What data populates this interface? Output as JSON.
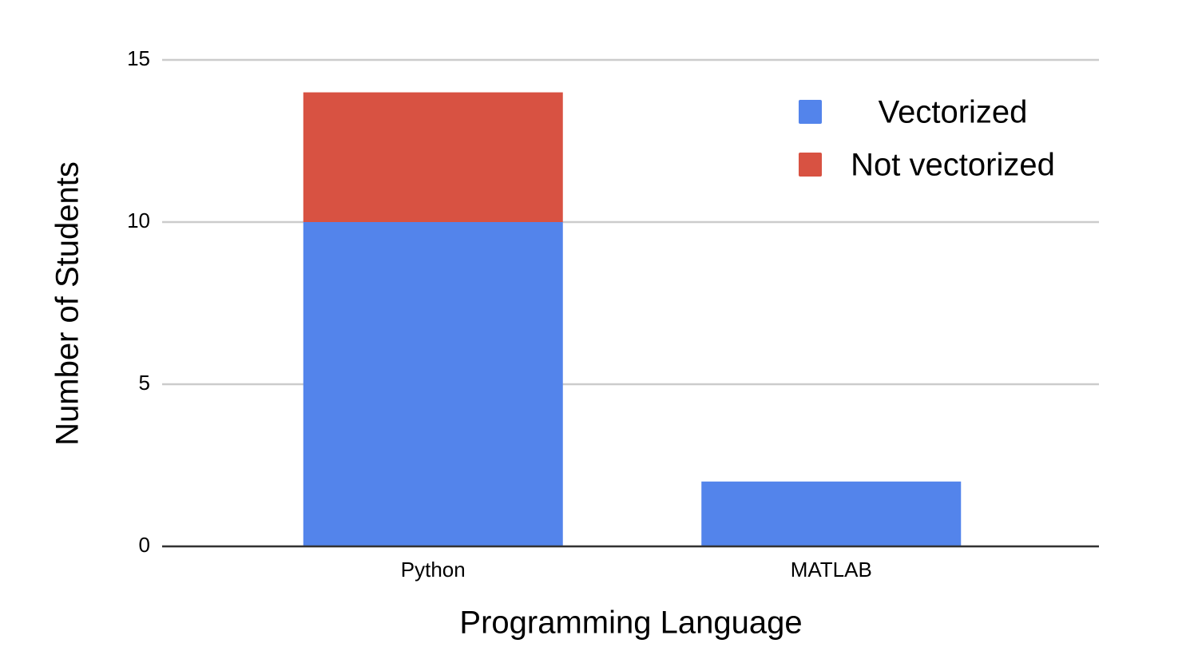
{
  "chart_data": {
    "type": "stacked_bar",
    "x_label": "Programming Language",
    "y_label": "Number of Students",
    "categories": [
      "Python",
      "MATLAB"
    ],
    "series": [
      {
        "name": "Vectorized",
        "color": "#5384eb",
        "values": [
          10,
          2
        ]
      },
      {
        "name": "Not vectorized",
        "color": "#d85242",
        "values": [
          4,
          0
        ]
      }
    ],
    "ylim": [
      0,
      15
    ],
    "yticks": [
      0,
      5,
      10,
      15
    ],
    "grid": true,
    "legend": "upper right"
  }
}
